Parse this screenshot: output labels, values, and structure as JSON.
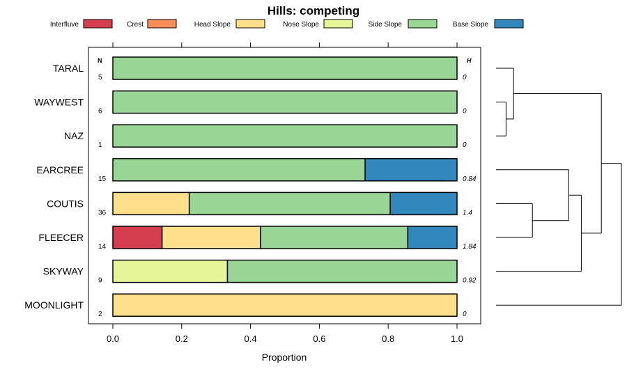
{
  "chart_data": {
    "type": "bar",
    "orientation": "horizontal-stacked",
    "title": "Hills: competing",
    "xlabel": "Proportion",
    "ylabel": "",
    "xlim": [
      -0.07,
      1.07
    ],
    "x_ticks": [
      0.0,
      0.2,
      0.4,
      0.6,
      0.8,
      1.0
    ],
    "x_tick_labels": [
      "0.0",
      "0.2",
      "0.4",
      "0.6",
      "0.8",
      "1.0"
    ],
    "legend_placement": "top",
    "n_header": "N",
    "h_header": "H",
    "segments": [
      {
        "name": "Interfluve",
        "color": "#D53E4F"
      },
      {
        "name": "Crest",
        "color": "#FC8D59"
      },
      {
        "name": "Head Slope",
        "color": "#FEE08B"
      },
      {
        "name": "Nose Slope",
        "color": "#E6F598"
      },
      {
        "name": "Side Slope",
        "color": "#99D594"
      },
      {
        "name": "Base Slope",
        "color": "#3288BD"
      }
    ],
    "categories": [
      "TARAL",
      "WAYWEST",
      "NAZ",
      "EARCREE",
      "COUTIS",
      "FLEECER",
      "SKYWAY",
      "MOONLIGHT"
    ],
    "series": [
      {
        "name": "Interfluve",
        "values": [
          0,
          0,
          0,
          0,
          0,
          0.143,
          0,
          0
        ]
      },
      {
        "name": "Crest",
        "values": [
          0,
          0,
          0,
          0,
          0,
          0,
          0,
          0
        ]
      },
      {
        "name": "Head Slope",
        "values": [
          0,
          0,
          0,
          0,
          0.222,
          0.286,
          0,
          1.0
        ]
      },
      {
        "name": "Nose Slope",
        "values": [
          0,
          0,
          0,
          0,
          0,
          0,
          0.333,
          0
        ]
      },
      {
        "name": "Side Slope",
        "values": [
          1.0,
          1.0,
          1.0,
          0.733,
          0.584,
          0.428,
          0.667,
          0
        ]
      },
      {
        "name": "Base Slope",
        "values": [
          0,
          0,
          0,
          0.267,
          0.194,
          0.143,
          0,
          0
        ]
      }
    ],
    "n": [
      "5",
      "6",
      "1",
      "15",
      "36",
      "14",
      "9",
      "2"
    ],
    "h": [
      "0",
      "0",
      "0",
      "0.84",
      "1.4",
      "1.84",
      "0.92",
      "0"
    ],
    "dendrogram": {
      "type": "hierarchical-clustering",
      "merges": [
        {
          "left": "WAYWEST",
          "right": "NAZ",
          "height": 0.08
        },
        {
          "left": "TARAL",
          "right": "WAYWEST+NAZ",
          "height": 0.14
        },
        {
          "left": "COUTIS",
          "right": "FLEECER",
          "height": 0.29
        },
        {
          "left": "EARCREE",
          "right": "COUTIS+FLEECER",
          "height": 0.58
        },
        {
          "left": "EARCREE+COUTIS+FLEECER",
          "right": "SKYWAY",
          "height": 0.68
        },
        {
          "left": "TARAL+WAYWEST+NAZ",
          "right": "EARCREE+COUTIS+FLEECER+SKYWAY",
          "height": 0.84
        },
        {
          "left": "ALL-OTHERS",
          "right": "MOONLIGHT",
          "height": 1.0
        }
      ]
    }
  }
}
